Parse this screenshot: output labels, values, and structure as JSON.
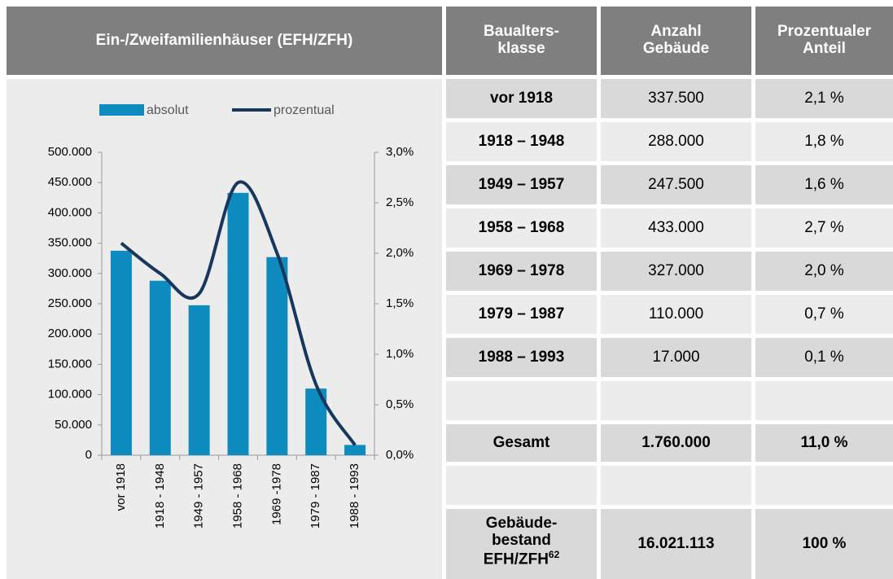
{
  "header": {
    "title": "Ein-/Zweifamilienhäuser (EFH/ZFH)",
    "columns": [
      "Baualters-\nklasse",
      "Anzahl\nGebäude",
      "Prozentualer\nAnteil"
    ]
  },
  "table": {
    "rows": [
      [
        "vor 1918",
        "337.500",
        "2,1 %"
      ],
      [
        "1918 – 1948",
        "288.000",
        "1,8 %"
      ],
      [
        "1949 – 1957",
        "247.500",
        "1,6 %"
      ],
      [
        "1958 – 1968",
        "433.000",
        "2,7 %"
      ],
      [
        "1969 – 1978",
        "327.000",
        "2,0 %"
      ],
      [
        "1979 – 1987",
        "110.000",
        "0,7 %"
      ],
      [
        "1988 – 1993",
        "17.000",
        "0,1 %"
      ]
    ],
    "total": [
      "Gesamt",
      "1.760.000",
      "11,0 %"
    ],
    "stock": [
      "Gebäude-\nbestand\nEFH/ZFH",
      "16.021.113",
      "100 %"
    ],
    "stock_footnote": "62"
  },
  "chart_data": {
    "type": "bar-line",
    "legend": "top",
    "categories": [
      "vor 1918",
      "1918 - 1948",
      "1949 - 1957",
      "1958 - 1968",
      "1969 -1978",
      "1979 - 1987",
      "1988 - 1993"
    ],
    "series": [
      {
        "name": "absolut",
        "type": "bar",
        "color": "#0e8cc0",
        "values": [
          337500,
          288000,
          247500,
          433000,
          327000,
          110000,
          17000
        ]
      },
      {
        "name": "prozentual",
        "type": "line",
        "axis": "y2",
        "color": "#17375e",
        "values": [
          2.1,
          1.8,
          1.6,
          2.7,
          2.0,
          0.7,
          0.1
        ]
      }
    ],
    "ylim": [
      0,
      500000
    ],
    "yticks": [
      0,
      {
        "value": 50000,
        "label": "50.000"
      },
      {
        "value": 100000,
        "label": "100.000"
      },
      {
        "value": 150000,
        "label": "150.000"
      },
      {
        "value": 200000,
        "label": "200.000"
      },
      {
        "value": 250000,
        "label": "250.000"
      },
      {
        "value": 300000,
        "label": "300.000"
      },
      {
        "value": 350000,
        "label": "350.000"
      },
      {
        "value": 400000,
        "label": "400.000"
      },
      {
        "value": 450000,
        "label": "450.000"
      },
      {
        "value": 500000,
        "label": "500.000"
      }
    ],
    "y2lim": [
      0,
      3
    ],
    "y2ticks": [
      {
        "value": 0,
        "label": "0,0%"
      },
      {
        "value": 0.5,
        "label": "0,5%"
      },
      {
        "value": 1,
        "label": "1,0%"
      },
      {
        "value": 1.5,
        "label": "1,5%"
      },
      {
        "value": 2,
        "label": "2,0%"
      },
      {
        "value": 2.5,
        "label": "2,5%"
      },
      {
        "value": 3,
        "label": "3,0%"
      }
    ]
  }
}
